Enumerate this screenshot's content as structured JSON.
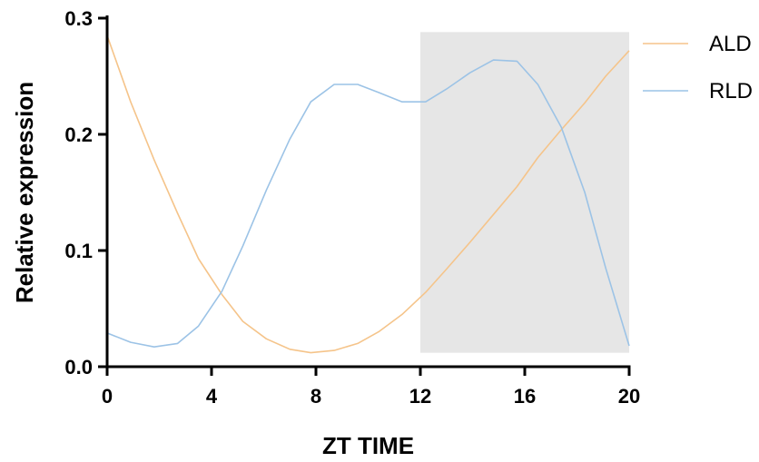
{
  "chart_data": {
    "type": "line",
    "xlabel": "ZT TIME",
    "ylabel": "Relative expression",
    "xlim": [
      0,
      20
    ],
    "ylim": [
      0,
      0.3
    ],
    "xticks": [
      0,
      4,
      8,
      12,
      16,
      20
    ],
    "xtick_labels": [
      "0",
      "4",
      "8",
      "12",
      "16",
      "20"
    ],
    "yticks": [
      0,
      0.1,
      0.2,
      0.3
    ],
    "ytick_labels": [
      "0.0",
      "0.1",
      "0.2",
      "0.3"
    ],
    "grid": false,
    "legend_position": "right",
    "shaded_region": {
      "x_start": 12,
      "x_end": 20,
      "y_start": 0.012,
      "y_end": 0.288,
      "color": "#e6e6e6"
    },
    "series": [
      {
        "name": "ALD",
        "color": "#f5c48a",
        "x": [
          0,
          0.9,
          1.8,
          2.7,
          3.5,
          4.4,
          5.2,
          6.1,
          7.0,
          7.8,
          8.7,
          9.6,
          10.4,
          11.3,
          12.2,
          13.0,
          13.9,
          14.8,
          15.7,
          16.5,
          17.4,
          18.3,
          19.1,
          20.0
        ],
        "y": [
          0.285,
          0.228,
          0.178,
          0.132,
          0.093,
          0.062,
          0.039,
          0.024,
          0.015,
          0.012,
          0.014,
          0.02,
          0.03,
          0.045,
          0.064,
          0.084,
          0.107,
          0.131,
          0.155,
          0.18,
          0.204,
          0.227,
          0.25,
          0.272
        ]
      },
      {
        "name": "RLD",
        "color": "#9cc3e6",
        "x": [
          0,
          0.9,
          1.8,
          2.7,
          3.5,
          4.4,
          5.2,
          6.1,
          7.0,
          7.8,
          8.7,
          9.6,
          10.4,
          11.3,
          12.2,
          13.0,
          13.9,
          14.8,
          15.7,
          16.5,
          17.4,
          18.3,
          19.1,
          20.0
        ],
        "y": [
          0.029,
          0.021,
          0.017,
          0.02,
          0.035,
          0.065,
          0.104,
          0.152,
          0.196,
          0.228,
          0.243,
          0.243,
          0.236,
          0.228,
          0.228,
          0.239,
          0.253,
          0.264,
          0.263,
          0.243,
          0.206,
          0.15,
          0.085,
          0.018
        ]
      }
    ]
  }
}
